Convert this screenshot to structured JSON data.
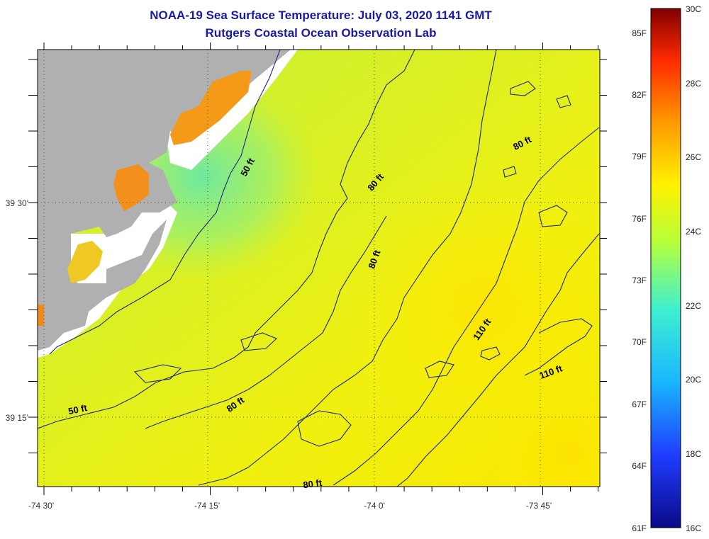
{
  "titles": {
    "line1": "NOAA-19 Sea Surface Temperature:  July 03, 2020 1141 GMT",
    "line2": "Rutgers Coastal Ocean Observation Lab"
  },
  "map": {
    "lon_labels": [
      "-74 30'",
      "-74 15'",
      "-74 0'",
      "-73 45'"
    ],
    "lat_labels": [
      "39 30'",
      "39 15'"
    ],
    "contour_labels": [
      "50 ft",
      "50 ft",
      "80 ft",
      "80 ft",
      "80 ft",
      "80 ft",
      "80 ft",
      "110 ft",
      "110 ft"
    ],
    "colors": {
      "land": "#b0b0b0",
      "contour": "#1c2a80",
      "grid": "#2a6a2a"
    }
  },
  "colorbar": {
    "celsius": [
      "30C",
      "28C",
      "26C",
      "24C",
      "22C",
      "20C",
      "18C",
      "16C"
    ],
    "fahrenheit": [
      "85F",
      "82F",
      "79F",
      "76F",
      "73F",
      "70F",
      "67F",
      "64F",
      "61F"
    ],
    "colors": [
      "#0a0a8a",
      "#1f3dff",
      "#19b6ff",
      "#3df0d0",
      "#b6ff3a",
      "#fff200",
      "#ff9a00",
      "#ff2a00",
      "#820000"
    ]
  }
}
